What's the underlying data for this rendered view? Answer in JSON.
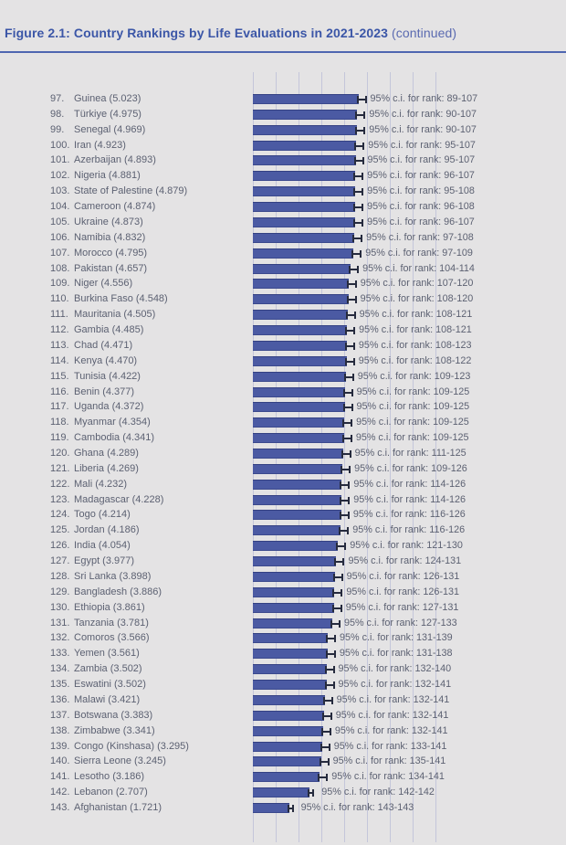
{
  "header": {
    "title": "Figure 2.1: Country Rankings by Life Evaluations in 2021-2023",
    "title_note": "(continued)"
  },
  "colors": {
    "background": "#e4e3e4",
    "title_blue": "#3b56a7",
    "rule_blue": "#4e66b0",
    "bar_blue": "#4b5aa3",
    "gridline": "#c4c6da",
    "text": "#5c6172",
    "error_bar": "#262b3e"
  },
  "chart_data": {
    "type": "bar",
    "orientation": "horizontal",
    "title": "Figure 2.1: Country Rankings by Life Evaluations in 2021-2023 (continued)",
    "row_label_format": "{rank}. {country} ({score})",
    "ci_prefix": "95% c.i. for rank: ",
    "x_axis": {
      "min": 0,
      "max": 8,
      "tick_labels": "none",
      "gridlines": 9,
      "grid": true
    },
    "legend": "none",
    "rows": [
      {
        "rank": 97,
        "country": "Guinea",
        "score": 5.023,
        "ci_lo": 89,
        "ci_hi": 107
      },
      {
        "rank": 98,
        "country": "Türkiye",
        "score": 4.975,
        "ci_lo": 90,
        "ci_hi": 107
      },
      {
        "rank": 99,
        "country": "Senegal",
        "score": 4.969,
        "ci_lo": 90,
        "ci_hi": 107
      },
      {
        "rank": 100,
        "country": "Iran",
        "score": 4.923,
        "ci_lo": 95,
        "ci_hi": 107
      },
      {
        "rank": 101,
        "country": "Azerbaijan",
        "score": 4.893,
        "ci_lo": 95,
        "ci_hi": 107
      },
      {
        "rank": 102,
        "country": "Nigeria",
        "score": 4.881,
        "ci_lo": 96,
        "ci_hi": 107
      },
      {
        "rank": 103,
        "country": "State of Palestine",
        "score": 4.879,
        "ci_lo": 95,
        "ci_hi": 108
      },
      {
        "rank": 104,
        "country": "Cameroon",
        "score": 4.874,
        "ci_lo": 96,
        "ci_hi": 108
      },
      {
        "rank": 105,
        "country": "Ukraine",
        "score": 4.873,
        "ci_lo": 96,
        "ci_hi": 107
      },
      {
        "rank": 106,
        "country": "Namibia",
        "score": 4.832,
        "ci_lo": 97,
        "ci_hi": 108
      },
      {
        "rank": 107,
        "country": "Morocco",
        "score": 4.795,
        "ci_lo": 97,
        "ci_hi": 109
      },
      {
        "rank": 108,
        "country": "Pakistan",
        "score": 4.657,
        "ci_lo": 104,
        "ci_hi": 114
      },
      {
        "rank": 109,
        "country": "Niger",
        "score": 4.556,
        "ci_lo": 107,
        "ci_hi": 120
      },
      {
        "rank": 110,
        "country": "Burkina Faso",
        "score": 4.548,
        "ci_lo": 108,
        "ci_hi": 120
      },
      {
        "rank": 111,
        "country": "Mauritania",
        "score": 4.505,
        "ci_lo": 108,
        "ci_hi": 121
      },
      {
        "rank": 112,
        "country": "Gambia",
        "score": 4.485,
        "ci_lo": 108,
        "ci_hi": 121
      },
      {
        "rank": 113,
        "country": "Chad",
        "score": 4.471,
        "ci_lo": 108,
        "ci_hi": 123
      },
      {
        "rank": 114,
        "country": "Kenya",
        "score": 4.47,
        "ci_lo": 108,
        "ci_hi": 122
      },
      {
        "rank": 115,
        "country": "Tunisia",
        "score": 4.422,
        "ci_lo": 109,
        "ci_hi": 123
      },
      {
        "rank": 116,
        "country": "Benin",
        "score": 4.377,
        "ci_lo": 109,
        "ci_hi": 125
      },
      {
        "rank": 117,
        "country": "Uganda",
        "score": 4.372,
        "ci_lo": 109,
        "ci_hi": 125
      },
      {
        "rank": 118,
        "country": "Myanmar",
        "score": 4.354,
        "ci_lo": 109,
        "ci_hi": 125
      },
      {
        "rank": 119,
        "country": "Cambodia",
        "score": 4.341,
        "ci_lo": 109,
        "ci_hi": 125
      },
      {
        "rank": 120,
        "country": "Ghana",
        "score": 4.289,
        "ci_lo": 111,
        "ci_hi": 125
      },
      {
        "rank": 121,
        "country": "Liberia",
        "score": 4.269,
        "ci_lo": 109,
        "ci_hi": 126
      },
      {
        "rank": 122,
        "country": "Mali",
        "score": 4.232,
        "ci_lo": 114,
        "ci_hi": 126
      },
      {
        "rank": 123,
        "country": "Madagascar",
        "score": 4.228,
        "ci_lo": 114,
        "ci_hi": 126
      },
      {
        "rank": 124,
        "country": "Togo",
        "score": 4.214,
        "ci_lo": 116,
        "ci_hi": 126
      },
      {
        "rank": 125,
        "country": "Jordan",
        "score": 4.186,
        "ci_lo": 116,
        "ci_hi": 126
      },
      {
        "rank": 126,
        "country": "India",
        "score": 4.054,
        "ci_lo": 121,
        "ci_hi": 130
      },
      {
        "rank": 127,
        "country": "Egypt",
        "score": 3.977,
        "ci_lo": 124,
        "ci_hi": 131
      },
      {
        "rank": 128,
        "country": "Sri Lanka",
        "score": 3.898,
        "ci_lo": 126,
        "ci_hi": 131
      },
      {
        "rank": 129,
        "country": "Bangladesh",
        "score": 3.886,
        "ci_lo": 126,
        "ci_hi": 131
      },
      {
        "rank": 130,
        "country": "Ethiopia",
        "score": 3.861,
        "ci_lo": 127,
        "ci_hi": 131
      },
      {
        "rank": 131,
        "country": "Tanzania",
        "score": 3.781,
        "ci_lo": 127,
        "ci_hi": 133
      },
      {
        "rank": 132,
        "country": "Comoros",
        "score": 3.566,
        "ci_lo": 131,
        "ci_hi": 139
      },
      {
        "rank": 133,
        "country": "Yemen",
        "score": 3.561,
        "ci_lo": 131,
        "ci_hi": 138
      },
      {
        "rank": 134,
        "country": "Zambia",
        "score": 3.502,
        "ci_lo": 132,
        "ci_hi": 140
      },
      {
        "rank": 135,
        "country": "Eswatini",
        "score": 3.502,
        "ci_lo": 132,
        "ci_hi": 141
      },
      {
        "rank": 136,
        "country": "Malawi",
        "score": 3.421,
        "ci_lo": 132,
        "ci_hi": 141
      },
      {
        "rank": 137,
        "country": "Botswana",
        "score": 3.383,
        "ci_lo": 132,
        "ci_hi": 141
      },
      {
        "rank": 138,
        "country": "Zimbabwe",
        "score": 3.341,
        "ci_lo": 132,
        "ci_hi": 141
      },
      {
        "rank": 139,
        "country": "Congo  (Kinshasa)",
        "score": 3.295,
        "ci_lo": 133,
        "ci_hi": 141
      },
      {
        "rank": 140,
        "country": "Sierra Leone",
        "score": 3.245,
        "ci_lo": 135,
        "ci_hi": 141
      },
      {
        "rank": 141,
        "country": "Lesotho",
        "score": 3.186,
        "ci_lo": 134,
        "ci_hi": 141
      },
      {
        "rank": 142,
        "country": "Lebanon",
        "score": 2.707,
        "ci_lo": 142,
        "ci_hi": 142
      },
      {
        "rank": 143,
        "country": "Afghanistan",
        "score": 1.721,
        "ci_lo": 143,
        "ci_hi": 143
      }
    ]
  }
}
